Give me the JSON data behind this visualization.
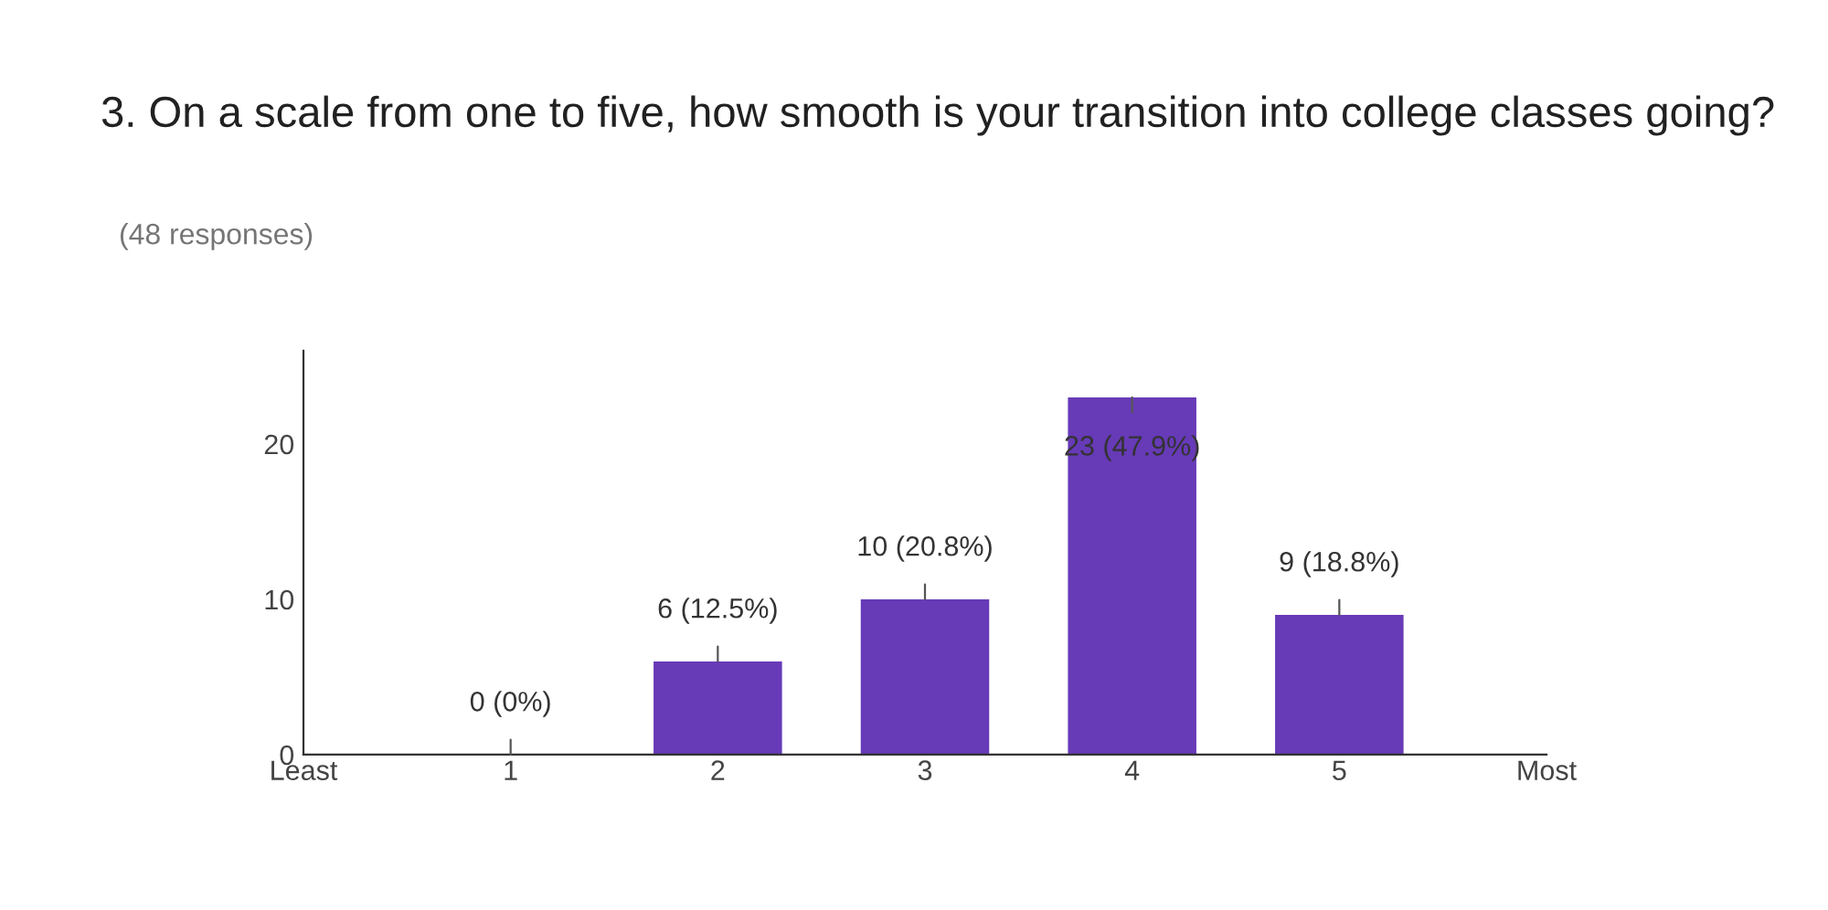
{
  "chart_data": {
    "type": "bar",
    "title": "3. On a scale from one to five, how smooth is your transition into college classes going?",
    "subtitle": "(48 responses)",
    "x": [
      1,
      2,
      3,
      4,
      5
    ],
    "values": [
      0,
      6,
      10,
      23,
      9
    ],
    "color": "#673ab7",
    "value_labels": [
      "0 (0%)",
      "6 (12.5%)",
      "10 (20.8%)",
      "23 (47.9%)",
      "9 (18.8%)"
    ],
    "xlim": [
      0,
      6
    ],
    "xticks": [
      {
        "value": 0,
        "label": "Least"
      },
      1,
      2,
      3,
      4,
      5,
      {
        "value": 6,
        "label": "Most"
      }
    ],
    "ylim": [
      0,
      26
    ],
    "yticks": [
      0,
      10,
      20
    ],
    "grid": false,
    "legend": false
  }
}
